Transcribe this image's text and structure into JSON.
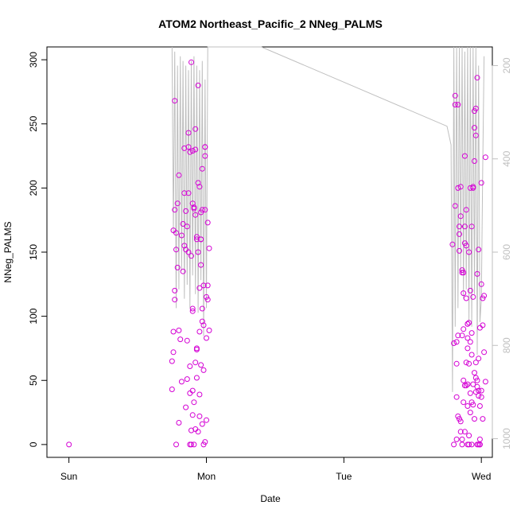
{
  "chart_data": {
    "type": "scatter",
    "title": "ATOM2 Northeast_Pacific_2 NNeg_PALMS",
    "xlabel": "Date",
    "ylabel": "NNeg_PALMS",
    "x_ticks": [
      {
        "value": 0,
        "label": "Sun"
      },
      {
        "value": 1,
        "label": "Mon"
      },
      {
        "value": 2,
        "label": "Tue"
      },
      {
        "value": 3,
        "label": "Wed"
      }
    ],
    "y_ticks": [
      0,
      50,
      100,
      150,
      200,
      250,
      300
    ],
    "y2_ticks": [
      200,
      400,
      600,
      800,
      1000
    ],
    "xlim": [
      -0.16,
      3.08
    ],
    "ylim": [
      -10,
      310
    ],
    "y2lim": [
      1040,
      160
    ],
    "series": [
      {
        "name": "NNeg_PALMS",
        "type": "points",
        "color": "#d400d4",
        "points": [
          [
            0.0,
            0
          ],
          [
            0.75,
            43
          ],
          [
            0.75,
            65
          ],
          [
            0.76,
            72
          ],
          [
            0.76,
            88
          ],
          [
            0.77,
            113
          ],
          [
            0.77,
            120
          ],
          [
            0.76,
            167
          ],
          [
            0.77,
            183
          ],
          [
            0.78,
            0
          ],
          [
            0.77,
            268
          ],
          [
            0.78,
            152
          ],
          [
            0.79,
            138
          ],
          [
            0.78,
            165
          ],
          [
            0.79,
            188
          ],
          [
            0.8,
            210
          ],
          [
            0.8,
            89
          ],
          [
            0.8,
            17
          ],
          [
            0.81,
            82
          ],
          [
            0.82,
            49
          ],
          [
            0.82,
            163
          ],
          [
            0.83,
            172
          ],
          [
            0.83,
            135
          ],
          [
            0.84,
            231
          ],
          [
            0.84,
            196
          ],
          [
            0.85,
            152
          ],
          [
            0.85,
            29
          ],
          [
            0.86,
            81
          ],
          [
            0.87,
            243
          ],
          [
            0.87,
            232
          ],
          [
            0.88,
            61
          ],
          [
            0.88,
            0
          ],
          [
            0.89,
            147
          ],
          [
            0.89,
            298
          ],
          [
            0.9,
            42
          ],
          [
            0.9,
            104
          ],
          [
            0.9,
            229
          ],
          [
            0.91,
            184
          ],
          [
            0.91,
            185
          ],
          [
            0.92,
            246
          ],
          [
            0.92,
            230
          ],
          [
            0.92,
            179
          ],
          [
            0.93,
            74
          ],
          [
            0.93,
            160
          ],
          [
            0.94,
            280
          ],
          [
            0.94,
            204
          ],
          [
            0.95,
            122
          ],
          [
            0.95,
            201
          ],
          [
            0.96,
            181
          ],
          [
            0.96,
            160
          ],
          [
            0.97,
            215
          ],
          [
            0.97,
            96
          ],
          [
            0.98,
            93
          ],
          [
            0.98,
            0
          ],
          [
            0.99,
            225
          ],
          [
            0.99,
            232
          ],
          [
            1.0,
            83
          ],
          [
            1.0,
            19
          ],
          [
            1.0,
            115
          ],
          [
            1.01,
            113
          ],
          [
            1.01,
            124
          ],
          [
            1.01,
            173
          ],
          [
            1.02,
            89
          ],
          [
            1.02,
            153
          ],
          [
            0.88,
            40
          ],
          [
            0.89,
            11
          ],
          [
            0.9,
            23
          ],
          [
            0.92,
            64
          ],
          [
            0.93,
            52
          ],
          [
            0.95,
            39
          ],
          [
            0.96,
            62
          ],
          [
            0.97,
            16
          ],
          [
            0.98,
            58
          ],
          [
            0.99,
            2
          ],
          [
            0.91,
            33
          ],
          [
            0.94,
            10
          ],
          [
            0.95,
            88
          ],
          [
            0.96,
            140
          ],
          [
            0.97,
            106
          ],
          [
            0.98,
            124
          ],
          [
            0.99,
            183
          ],
          [
            0.86,
            51
          ],
          [
            0.87,
            150
          ],
          [
            0.89,
            0
          ],
          [
            0.91,
            0
          ],
          [
            0.93,
            75
          ],
          [
            0.94,
            150
          ],
          [
            0.96,
            160
          ],
          [
            0.87,
            196
          ],
          [
            0.9,
            106
          ],
          [
            0.92,
            12
          ],
          [
            0.93,
            162
          ],
          [
            0.95,
            22
          ],
          [
            0.97,
            183
          ],
          [
            0.99,
            232
          ],
          [
            0.84,
            155
          ],
          [
            0.85,
            182
          ],
          [
            0.86,
            170
          ],
          [
            0.88,
            228
          ],
          [
            0.9,
            188
          ],
          [
            2.79,
            156
          ],
          [
            2.8,
            0
          ],
          [
            2.8,
            79
          ],
          [
            2.81,
            265
          ],
          [
            2.81,
            272
          ],
          [
            2.81,
            186
          ],
          [
            2.82,
            63
          ],
          [
            2.82,
            4
          ],
          [
            2.82,
            37
          ],
          [
            2.83,
            22
          ],
          [
            2.83,
            265
          ],
          [
            2.83,
            200
          ],
          [
            2.84,
            164
          ],
          [
            2.84,
            151
          ],
          [
            2.85,
            201
          ],
          [
            2.85,
            178
          ],
          [
            2.85,
            18
          ],
          [
            2.86,
            0
          ],
          [
            2.86,
            136
          ],
          [
            2.87,
            50
          ],
          [
            2.87,
            134
          ],
          [
            2.87,
            118
          ],
          [
            2.88,
            157
          ],
          [
            2.88,
            170
          ],
          [
            2.88,
            225
          ],
          [
            2.89,
            114
          ],
          [
            2.89,
            155
          ],
          [
            2.89,
            183
          ],
          [
            2.9,
            30
          ],
          [
            2.9,
            94
          ],
          [
            2.9,
            94
          ],
          [
            2.9,
            47
          ],
          [
            2.91,
            7
          ],
          [
            2.91,
            95
          ],
          [
            2.91,
            150
          ],
          [
            2.92,
            200
          ],
          [
            2.92,
            80
          ],
          [
            2.92,
            25
          ],
          [
            2.93,
            70
          ],
          [
            2.93,
            87
          ],
          [
            2.94,
            47
          ],
          [
            2.94,
            115
          ],
          [
            2.94,
            201
          ],
          [
            2.95,
            221
          ],
          [
            2.95,
            247
          ],
          [
            2.95,
            260
          ],
          [
            2.96,
            241
          ],
          [
            2.96,
            262
          ],
          [
            2.96,
            41
          ],
          [
            2.97,
            50
          ],
          [
            2.97,
            133
          ],
          [
            2.97,
            286
          ],
          [
            2.98,
            152
          ],
          [
            2.98,
            42
          ],
          [
            2.98,
            67
          ],
          [
            2.99,
            91
          ],
          [
            2.99,
            0
          ],
          [
            2.99,
            4
          ],
          [
            3.0,
            204
          ],
          [
            3.0,
            125
          ],
          [
            3.01,
            114
          ],
          [
            3.01,
            20
          ],
          [
            3.01,
            93
          ],
          [
            3.02,
            72
          ],
          [
            3.02,
            116
          ],
          [
            3.03,
            224
          ],
          [
            3.03,
            49
          ],
          [
            2.84,
            20
          ],
          [
            2.85,
            10
          ],
          [
            2.86,
            4
          ],
          [
            2.87,
            33
          ],
          [
            2.88,
            46
          ],
          [
            2.89,
            64
          ],
          [
            2.9,
            75
          ],
          [
            2.91,
            63
          ],
          [
            2.92,
            40
          ],
          [
            2.93,
            33
          ],
          [
            2.94,
            31
          ],
          [
            2.95,
            56
          ],
          [
            2.96,
            52
          ],
          [
            2.97,
            45
          ],
          [
            2.98,
            38
          ],
          [
            2.99,
            30
          ],
          [
            3.0,
            42
          ],
          [
            2.86,
            85
          ],
          [
            2.88,
            10
          ],
          [
            2.9,
            83
          ],
          [
            2.92,
            120
          ],
          [
            2.94,
            200
          ],
          [
            2.96,
            64
          ],
          [
            2.98,
            0
          ],
          [
            3.0,
            37
          ],
          [
            2.83,
            85
          ],
          [
            2.87,
            90
          ],
          [
            2.89,
            46
          ],
          [
            2.91,
            0
          ],
          [
            2.93,
            0
          ],
          [
            2.95,
            20
          ],
          [
            2.97,
            0
          ],
          [
            2.99,
            0
          ],
          [
            2.82,
            80
          ],
          [
            2.84,
            170
          ],
          [
            2.86,
            134
          ],
          [
            2.9,
            0
          ],
          [
            2.93,
            170
          ]
        ]
      },
      {
        "name": "depth",
        "type": "line",
        "axis": "right",
        "color": "#bfbfbf",
        "points": [
          [
            0.75,
            150
          ],
          [
            0.76,
            560
          ],
          [
            0.77,
            170
          ],
          [
            0.78,
            720
          ],
          [
            0.79,
            200
          ],
          [
            0.8,
            680
          ],
          [
            0.81,
            180
          ],
          [
            0.82,
            640
          ],
          [
            0.83,
            190
          ],
          [
            0.84,
            700
          ],
          [
            0.85,
            200
          ],
          [
            0.86,
            670
          ],
          [
            0.87,
            210
          ],
          [
            0.88,
            720
          ],
          [
            0.89,
            190
          ],
          [
            0.9,
            650
          ],
          [
            0.91,
            180
          ],
          [
            0.92,
            690
          ],
          [
            0.93,
            200
          ],
          [
            0.94,
            730
          ],
          [
            0.95,
            210
          ],
          [
            0.96,
            660
          ],
          [
            0.97,
            190
          ],
          [
            0.98,
            780
          ],
          [
            0.99,
            230
          ],
          [
            1.0,
            720
          ],
          [
            1.01,
            160
          ],
          [
            1.4,
            160
          ],
          [
            2.75,
            330
          ],
          [
            2.78,
            370
          ],
          [
            2.79,
            900
          ],
          [
            2.8,
            160
          ],
          [
            2.81,
            760
          ],
          [
            2.82,
            160
          ],
          [
            2.83,
            720
          ],
          [
            2.84,
            160
          ],
          [
            2.85,
            640
          ],
          [
            2.86,
            160
          ],
          [
            2.87,
            700
          ],
          [
            2.88,
            170
          ],
          [
            2.89,
            680
          ],
          [
            2.9,
            160
          ],
          [
            2.91,
            750
          ],
          [
            2.92,
            160
          ],
          [
            2.93,
            760
          ],
          [
            2.94,
            160
          ],
          [
            2.95,
            690
          ],
          [
            2.96,
            160
          ],
          [
            2.97,
            820
          ],
          [
            2.98,
            200
          ],
          [
            2.99,
            750
          ],
          [
            3.0,
            700
          ],
          [
            3.01,
            420
          ],
          [
            3.02,
            180
          ]
        ]
      }
    ]
  }
}
